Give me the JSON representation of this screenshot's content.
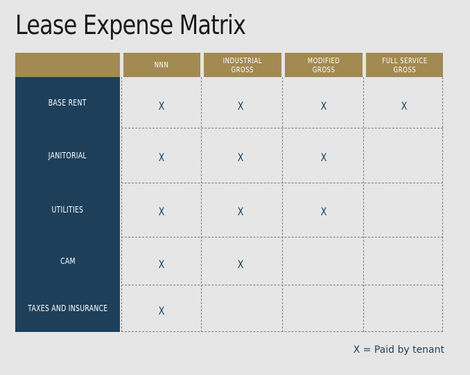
{
  "title": "Lease Expense Matrix",
  "columns": [
    {
      "label": "NNN"
    },
    {
      "label": "INDUSTRIAL\nGROSS"
    },
    {
      "label": "MODIFIED\nGROSS"
    },
    {
      "label": "FULL SERVICE\nGROSS"
    }
  ],
  "rows": [
    {
      "label": "BASE RENT",
      "marks": [
        "X",
        "X",
        "X",
        "X"
      ]
    },
    {
      "label": "JANITORIAL",
      "marks": [
        "X",
        "X",
        "X",
        ""
      ]
    },
    {
      "label": "UTILITIES",
      "marks": [
        "X",
        "X",
        "X",
        ""
      ]
    },
    {
      "label": "CAM",
      "marks": [
        "X",
        "X",
        "",
        ""
      ]
    },
    {
      "label": "TAXES AND INSURANCE",
      "marks": [
        "X",
        "",
        "",
        ""
      ]
    }
  ],
  "legend": "X = Paid by tenant",
  "colors": {
    "header_gold": "#a38a53",
    "row_navy": "#1d3f5a",
    "background": "#e6e6e6"
  }
}
